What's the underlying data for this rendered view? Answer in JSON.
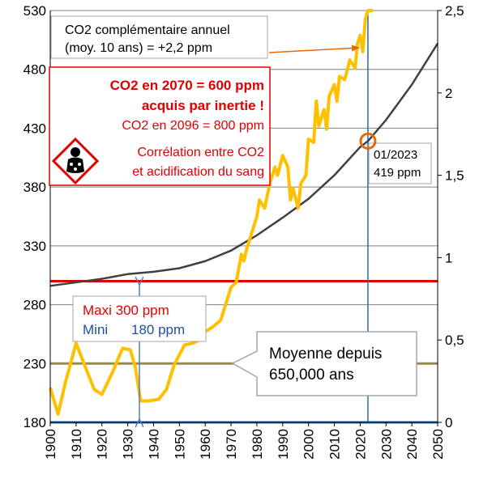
{
  "colors": {
    "grid": "#7f7f7f",
    "co2_ppm": "#404040",
    "co2_annual": "#ffc000",
    "max_line": "#e00000",
    "mean_line": "#948a54",
    "min_line": "#1f6fb4",
    "marker": "#e36c09",
    "arrow_blue": "#4f81bd",
    "alert_red": "#e00000",
    "text_blue": "#1f4e9b"
  },
  "annotations": {
    "annual_line1": "CO2 complémentaire annuel",
    "annual_line2": "(moy. 10 ans) = +2,2 ppm",
    "box_2070": "CO2 en 2070 = 600 ppm",
    "box_inertia": "acquis par inertie !",
    "box_2096": "CO2 en 2096 = 800 ppm",
    "corr_line1": "Corrélation entre CO2",
    "corr_line2": "et acidification du sang",
    "marker_date": "01/2023",
    "marker_value": "419 ppm",
    "maxi": "Maxi 300 ppm",
    "mini": "Mini",
    "mini_value": "180 ppm",
    "mean_line1": "Moyenne depuis",
    "mean_line2": "650,000 ans"
  },
  "chart_data": {
    "type": "line",
    "x_axis": {
      "range": [
        1900,
        2050
      ],
      "ticks": [
        "1900",
        "1910",
        "1920",
        "1930",
        "1940",
        "1950",
        "1960",
        "1970",
        "1980",
        "1990",
        "2000",
        "2010",
        "2020",
        "2030",
        "2040",
        "2050"
      ]
    },
    "y_left": {
      "range": [
        180,
        530
      ],
      "ticks": [
        "180",
        "230",
        "280",
        "330",
        "380",
        "430",
        "480",
        "530"
      ]
    },
    "y_right": {
      "range": [
        0,
        2.5
      ],
      "ticks": [
        "0",
        "0,5",
        "1",
        "1,5",
        "2",
        "2,5"
      ]
    },
    "grid": true,
    "series": [
      {
        "axis": "left",
        "values": [
          [
            1900,
            296
          ],
          [
            1910,
            299
          ],
          [
            1920,
            302
          ],
          [
            1930,
            306
          ],
          [
            1940,
            308
          ],
          [
            1950,
            311
          ],
          [
            1960,
            317
          ],
          [
            1970,
            326
          ],
          [
            1980,
            339
          ],
          [
            1990,
            354
          ],
          [
            2000,
            370
          ],
          [
            2010,
            390
          ],
          [
            2020,
            414
          ],
          [
            2023,
            419
          ],
          [
            2030,
            437
          ],
          [
            2040,
            467
          ],
          [
            2050,
            502
          ]
        ]
      },
      {
        "axis": "right",
        "values": [
          [
            1900,
            0.21
          ],
          [
            1903,
            0.05
          ],
          [
            1906,
            0.25
          ],
          [
            1910,
            0.48
          ],
          [
            1914,
            0.32
          ],
          [
            1917,
            0.2
          ],
          [
            1920,
            0.17
          ],
          [
            1924,
            0.3
          ],
          [
            1928,
            0.45
          ],
          [
            1931,
            0.44
          ],
          [
            1933,
            0.33
          ],
          [
            1935,
            0.13
          ],
          [
            1938,
            0.13
          ],
          [
            1942,
            0.14
          ],
          [
            1945,
            0.2
          ],
          [
            1948,
            0.35
          ],
          [
            1952,
            0.47
          ],
          [
            1955,
            0.48
          ],
          [
            1958,
            0.5
          ],
          [
            1960,
            0.55
          ],
          [
            1963,
            0.58
          ],
          [
            1966,
            0.62
          ],
          [
            1968,
            0.72
          ],
          [
            1970,
            0.82
          ],
          [
            1972,
            0.85
          ],
          [
            1974,
            1.02
          ],
          [
            1975,
            0.98
          ],
          [
            1976,
            1.05
          ],
          [
            1978,
            1.15
          ],
          [
            1980,
            1.25
          ],
          [
            1981,
            1.35
          ],
          [
            1983,
            1.3
          ],
          [
            1985,
            1.45
          ],
          [
            1987,
            1.55
          ],
          [
            1988,
            1.5
          ],
          [
            1990,
            1.62
          ],
          [
            1992,
            1.55
          ],
          [
            1993,
            1.35
          ],
          [
            1994,
            1.42
          ],
          [
            1996,
            1.3
          ],
          [
            1997,
            1.45
          ],
          [
            1999,
            1.5
          ],
          [
            2000,
            1.72
          ],
          [
            2002,
            1.7
          ],
          [
            2003,
            1.95
          ],
          [
            2004,
            1.8
          ],
          [
            2006,
            1.9
          ],
          [
            2007,
            1.78
          ],
          [
            2008,
            1.98
          ],
          [
            2010,
            2.05
          ],
          [
            2011,
            1.95
          ],
          [
            2012,
            2.1
          ],
          [
            2014,
            2.08
          ],
          [
            2016,
            2.2
          ],
          [
            2018,
            2.15
          ],
          [
            2019,
            2.3
          ],
          [
            2020,
            2.35
          ],
          [
            2021,
            2.25
          ],
          [
            2022,
            2.45
          ],
          [
            2023,
            2.5
          ],
          [
            2025,
            2.5
          ]
        ]
      }
    ],
    "reference_lines": [
      {
        "label": "Maxi 300 ppm",
        "y": 300
      },
      {
        "label": "Moyenne depuis 650,000 ans",
        "y": 230
      },
      {
        "label": "Mini 180 ppm",
        "y": 180
      }
    ],
    "vertical_line": {
      "x": 2023
    },
    "marker": {
      "x": 2023,
      "y": 419
    }
  }
}
